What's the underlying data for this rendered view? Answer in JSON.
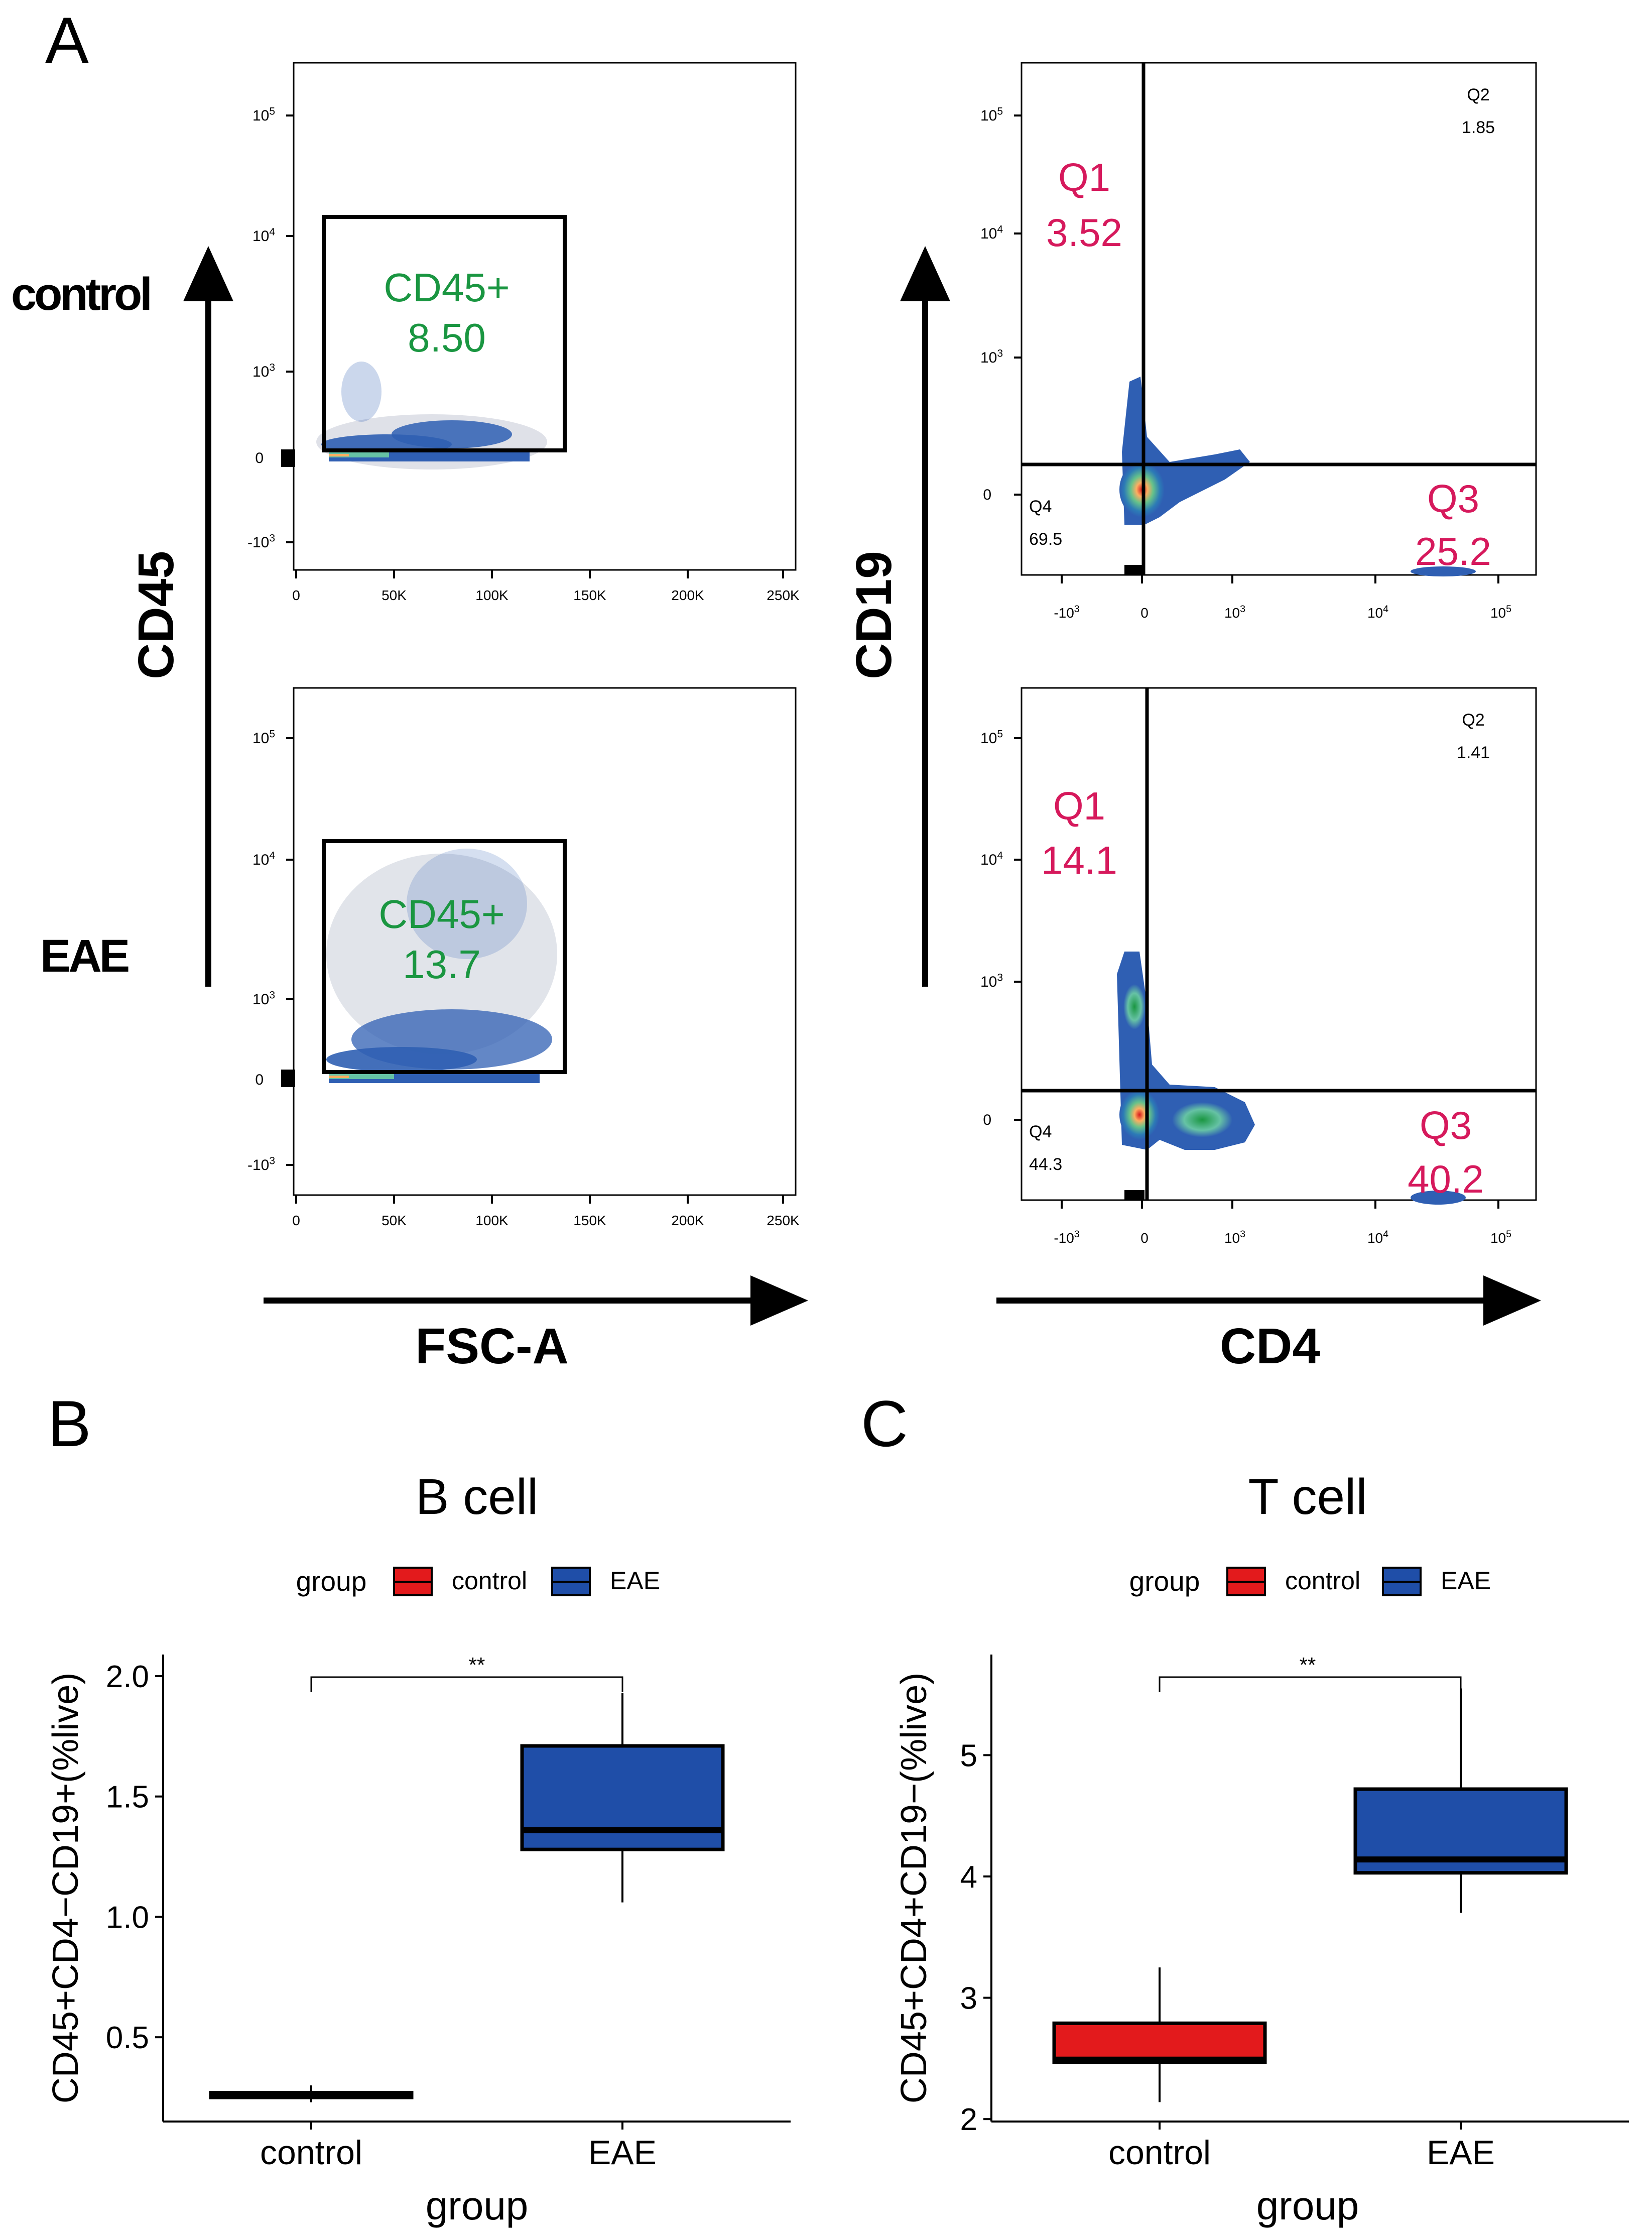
{
  "colors": {
    "black": "#000000",
    "gate_green": "#1a9641",
    "quad_pink": "#d6195c",
    "box_red": "#e31a1c",
    "box_blue": "#1f4ea8",
    "density_blue": "#2f5fb3"
  },
  "panel_labels": {
    "a": "A",
    "b": "B",
    "c": "C"
  },
  "panel_a": {
    "row_labels": {
      "control": "control",
      "eae": "EAE"
    },
    "left_axes": {
      "y": "CD45",
      "x": "FSC-A"
    },
    "right_axes": {
      "y": "CD19",
      "x": "CD4"
    },
    "fsc_ticks": [
      "0",
      "50K",
      "100K",
      "150K",
      "200K",
      "250K"
    ],
    "cd45_ticks": [
      "10^5",
      "10^4",
      "10^3",
      "0",
      "-10^3"
    ],
    "cd19_ticks": [
      "10^5",
      "10^4",
      "10^3",
      "0"
    ],
    "cd4_ticks": [
      "-10^3",
      "0",
      "10^3",
      "10^4",
      "10^5"
    ],
    "gate_control": {
      "name": "CD45+",
      "value": "8.50"
    },
    "gate_eae": {
      "name": "CD45+",
      "value": "13.7"
    },
    "quad_control": {
      "q1_name": "Q1",
      "q1": "3.52",
      "q2_name": "Q2",
      "q2": "1.85",
      "q3_name": "Q3",
      "q3": "25.2",
      "q4_name": "Q4",
      "q4": "69.5"
    },
    "quad_eae": {
      "q1_name": "Q1",
      "q1": "14.1",
      "q2_name": "Q2",
      "q2": "1.41",
      "q3_name": "Q3",
      "q3": "40.2",
      "q4_name": "Q4",
      "q4": "44.3"
    }
  },
  "chart_data": [
    {
      "type": "box",
      "panel": "B",
      "title": "B cell",
      "xlabel": "group",
      "ylabel": "CD45+CD4−CD19+(%live)",
      "legend_title": "group",
      "legend_position": "top",
      "categories": [
        "control",
        "EAE"
      ],
      "ylim": [
        0.15,
        2.1
      ],
      "yticks": [
        0.5,
        1.0,
        1.5,
        2.0
      ],
      "ytick_labels": [
        "0.5",
        "1.0",
        "1.5",
        "2.0"
      ],
      "significance": "**",
      "boxes": [
        {
          "group": "control",
          "min": 0.23,
          "q1": 0.25,
          "median": 0.26,
          "q3": 0.27,
          "max": 0.3
        },
        {
          "group": "EAE",
          "min": 1.06,
          "q1": 1.28,
          "median": 1.36,
          "q3": 1.71,
          "max": 1.93
        }
      ]
    },
    {
      "type": "box",
      "panel": "C",
      "title": "T cell",
      "xlabel": "group",
      "ylabel": "CD45+CD4+CD19−(%live)",
      "legend_title": "group",
      "legend_position": "top",
      "categories": [
        "control",
        "EAE"
      ],
      "ylim": [
        1.98,
        5.85
      ],
      "yticks": [
        2,
        3,
        4,
        5
      ],
      "ytick_labels": [
        "2",
        "3",
        "4",
        "5"
      ],
      "significance": "**",
      "boxes": [
        {
          "group": "control",
          "min": 2.14,
          "q1": 2.47,
          "median": 2.49,
          "q3": 2.79,
          "max": 3.25
        },
        {
          "group": "EAE",
          "min": 3.7,
          "q1": 4.03,
          "median": 4.14,
          "q3": 4.72,
          "max": 5.55
        }
      ]
    }
  ]
}
